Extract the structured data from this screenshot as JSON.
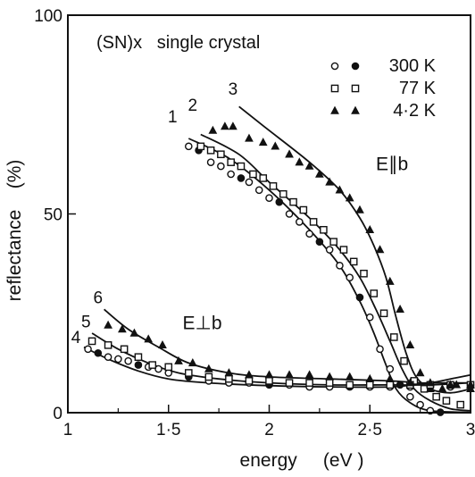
{
  "chart_data": {
    "type": "line",
    "title": "(SN)x   single crystal",
    "xlabel": "energy     (eV )",
    "ylabel": "reflectance    (%)",
    "xlim": [
      1,
      3
    ],
    "ylim": [
      0,
      100
    ],
    "xticks": [
      {
        "value": 1,
        "label": "1"
      },
      {
        "value": 1.5,
        "label": "1·5"
      },
      {
        "value": 2,
        "label": "2"
      },
      {
        "value": 2.5,
        "label": "2·5"
      },
      {
        "value": 3,
        "label": "3"
      }
    ],
    "yticks": [
      {
        "value": 0,
        "label": "0"
      },
      {
        "value": 50,
        "label": "50"
      },
      {
        "value": 100,
        "label": "100"
      }
    ],
    "grid": false,
    "legend": {
      "placement": "top-right",
      "entries": [
        {
          "markers": [
            "open-circle",
            "filled-circle"
          ],
          "label": "300 K"
        },
        {
          "markers": [
            "open-square",
            "dotted-square"
          ],
          "label": "77 K"
        },
        {
          "markers": [
            "filled-triangle",
            "filled-triangle"
          ],
          "label": "4·2 K"
        }
      ]
    },
    "annotations": [
      {
        "text": "E∥b",
        "x": 2.53,
        "y": 61
      },
      {
        "text": "E⊥b",
        "x": 1.57,
        "y": 21
      }
    ],
    "series": [
      {
        "name": "1",
        "group": "E∥b",
        "temperature": "300 K",
        "label_at": [
          1.52,
          73
        ],
        "curve": [
          [
            1.6,
            69
          ],
          [
            1.8,
            64
          ],
          [
            2.0,
            56
          ],
          [
            2.2,
            46
          ],
          [
            2.35,
            37
          ],
          [
            2.45,
            28
          ],
          [
            2.52,
            20
          ],
          [
            2.58,
            12
          ],
          [
            2.63,
            6
          ],
          [
            2.7,
            2.5
          ],
          [
            2.8,
            0.5
          ],
          [
            3.0,
            0.1
          ]
        ],
        "points": [
          [
            1.6,
            67
          ],
          [
            1.65,
            66
          ],
          [
            1.71,
            63
          ],
          [
            1.76,
            62
          ],
          [
            1.81,
            60
          ],
          [
            1.86,
            59
          ],
          [
            1.9,
            58
          ],
          [
            1.95,
            56
          ],
          [
            2.0,
            54
          ],
          [
            2.05,
            53
          ],
          [
            2.1,
            50
          ],
          [
            2.15,
            48
          ],
          [
            2.2,
            45
          ],
          [
            2.25,
            43
          ],
          [
            2.3,
            41
          ],
          [
            2.35,
            37
          ],
          [
            2.4,
            34
          ],
          [
            2.45,
            29
          ],
          [
            2.5,
            24
          ],
          [
            2.55,
            16
          ],
          [
            2.6,
            11
          ],
          [
            2.65,
            7
          ],
          [
            2.7,
            4
          ],
          [
            2.75,
            2
          ],
          [
            2.8,
            0.5
          ],
          [
            2.85,
            0.1
          ]
        ]
      },
      {
        "name": "2",
        "group": "E∥b",
        "temperature": "77 K",
        "label_at": [
          1.62,
          76
        ],
        "curve": [
          [
            1.66,
            70
          ],
          [
            1.85,
            65
          ],
          [
            2.0,
            58
          ],
          [
            2.2,
            49
          ],
          [
            2.35,
            41
          ],
          [
            2.45,
            34
          ],
          [
            2.53,
            26
          ],
          [
            2.6,
            18
          ],
          [
            2.66,
            11
          ],
          [
            2.72,
            6
          ],
          [
            2.8,
            3
          ],
          [
            2.9,
            1
          ],
          [
            3.0,
            0.5
          ]
        ],
        "points": [
          [
            1.66,
            67
          ],
          [
            1.71,
            66
          ],
          [
            1.76,
            65
          ],
          [
            1.81,
            63
          ],
          [
            1.86,
            62
          ],
          [
            1.92,
            60
          ],
          [
            1.97,
            59
          ],
          [
            2.02,
            57
          ],
          [
            2.07,
            55
          ],
          [
            2.12,
            53
          ],
          [
            2.17,
            51
          ],
          [
            2.22,
            48
          ],
          [
            2.27,
            46
          ],
          [
            2.32,
            43
          ],
          [
            2.37,
            41
          ],
          [
            2.42,
            38
          ],
          [
            2.47,
            35
          ],
          [
            2.52,
            30
          ],
          [
            2.57,
            25
          ],
          [
            2.62,
            19
          ],
          [
            2.67,
            13
          ],
          [
            2.72,
            8
          ],
          [
            2.77,
            6
          ],
          [
            2.83,
            4
          ],
          [
            2.88,
            3
          ],
          [
            2.95,
            2
          ]
        ]
      },
      {
        "name": "3",
        "group": "E∥b",
        "temperature": "4·2 K",
        "label_at": [
          1.82,
          80
        ],
        "curve": [
          [
            1.85,
            77
          ],
          [
            2.0,
            71
          ],
          [
            2.2,
            63
          ],
          [
            2.35,
            56
          ],
          [
            2.45,
            49
          ],
          [
            2.52,
            42
          ],
          [
            2.58,
            34
          ],
          [
            2.63,
            24
          ],
          [
            2.68,
            15
          ],
          [
            2.73,
            9
          ],
          [
            2.8,
            6
          ],
          [
            2.9,
            5
          ],
          [
            3.0,
            6
          ]
        ],
        "points": [
          [
            1.72,
            71
          ],
          [
            1.78,
            72
          ],
          [
            1.82,
            72
          ],
          [
            1.9,
            69
          ],
          [
            1.97,
            68
          ],
          [
            2.03,
            67
          ],
          [
            2.1,
            65
          ],
          [
            2.15,
            63
          ],
          [
            2.2,
            62
          ],
          [
            2.25,
            60
          ],
          [
            2.3,
            58
          ],
          [
            2.35,
            56
          ],
          [
            2.4,
            54
          ],
          [
            2.45,
            51
          ],
          [
            2.5,
            46
          ],
          [
            2.55,
            41
          ],
          [
            2.6,
            33
          ],
          [
            2.65,
            26
          ],
          [
            2.7,
            17
          ],
          [
            2.75,
            10
          ],
          [
            2.8,
            6
          ],
          [
            2.86,
            6
          ],
          [
            2.93,
            7
          ],
          [
            3.0,
            6
          ]
        ]
      },
      {
        "name": "4",
        "group": "E⊥b",
        "temperature": "300 K",
        "label_at": [
          1.04,
          17.5
        ],
        "curve": [
          [
            1.08,
            16.5
          ],
          [
            1.2,
            13.5
          ],
          [
            1.35,
            10.5
          ],
          [
            1.5,
            8.5
          ],
          [
            1.7,
            7.5
          ],
          [
            2.0,
            6.8
          ],
          [
            2.3,
            6.5
          ],
          [
            2.6,
            6.5
          ],
          [
            2.8,
            7.5
          ],
          [
            2.9,
            8.5
          ],
          [
            3.0,
            9.5
          ]
        ],
        "points": [
          [
            1.1,
            16
          ],
          [
            1.15,
            15
          ],
          [
            1.2,
            14
          ],
          [
            1.25,
            13.5
          ],
          [
            1.3,
            13
          ],
          [
            1.35,
            12
          ],
          [
            1.4,
            11.5
          ],
          [
            1.45,
            11
          ],
          [
            1.5,
            10
          ],
          [
            1.6,
            9
          ],
          [
            1.7,
            8
          ],
          [
            1.8,
            7.5
          ],
          [
            1.9,
            7.5
          ],
          [
            2.0,
            7
          ],
          [
            2.1,
            7
          ],
          [
            2.2,
            6.5
          ],
          [
            2.3,
            6.5
          ],
          [
            2.4,
            6.5
          ],
          [
            2.5,
            6.5
          ],
          [
            2.6,
            6.5
          ],
          [
            2.7,
            6.5
          ],
          [
            2.8,
            6.5
          ],
          [
            2.9,
            6.5
          ],
          [
            3.0,
            7
          ]
        ]
      },
      {
        "name": "5",
        "group": "E⊥b",
        "temperature": "77 K",
        "label_at": [
          1.09,
          21.5
        ],
        "curve": [
          [
            1.12,
            20
          ],
          [
            1.25,
            16
          ],
          [
            1.4,
            12.5
          ],
          [
            1.55,
            10
          ],
          [
            1.75,
            8.5
          ],
          [
            2.0,
            7.5
          ],
          [
            2.3,
            7
          ],
          [
            2.6,
            7
          ],
          [
            2.8,
            7
          ],
          [
            3.0,
            7.5
          ]
        ],
        "points": [
          [
            1.12,
            18
          ],
          [
            1.2,
            17
          ],
          [
            1.28,
            16
          ],
          [
            1.35,
            14
          ],
          [
            1.42,
            12
          ],
          [
            1.5,
            11.5
          ],
          [
            1.6,
            10
          ],
          [
            1.7,
            9
          ],
          [
            1.8,
            8.5
          ],
          [
            1.9,
            8
          ],
          [
            2.0,
            8
          ],
          [
            2.1,
            7.5
          ],
          [
            2.2,
            7.5
          ],
          [
            2.3,
            7.5
          ],
          [
            2.4,
            7
          ],
          [
            2.5,
            7
          ],
          [
            2.6,
            7
          ],
          [
            2.7,
            7
          ],
          [
            2.8,
            7
          ],
          [
            2.9,
            7
          ],
          [
            3.0,
            7
          ]
        ]
      },
      {
        "name": "6",
        "group": "E⊥b",
        "temperature": "4·2 K",
        "label_at": [
          1.15,
          27.5
        ],
        "curve": [
          [
            1.18,
            26
          ],
          [
            1.3,
            21
          ],
          [
            1.45,
            16.5
          ],
          [
            1.6,
            12.5
          ],
          [
            1.8,
            10
          ],
          [
            2.0,
            9
          ],
          [
            2.3,
            8.5
          ],
          [
            2.6,
            8
          ],
          [
            2.75,
            7.5
          ],
          [
            2.9,
            7.5
          ],
          [
            3.0,
            7.5
          ]
        ],
        "points": [
          [
            1.2,
            22
          ],
          [
            1.27,
            21
          ],
          [
            1.33,
            20
          ],
          [
            1.4,
            18.5
          ],
          [
            1.47,
            17
          ],
          [
            1.55,
            13
          ],
          [
            1.62,
            12.5
          ],
          [
            1.7,
            11
          ],
          [
            1.8,
            10
          ],
          [
            1.9,
            9.5
          ],
          [
            2.0,
            9.5
          ],
          [
            2.1,
            9.5
          ],
          [
            2.2,
            9.5
          ],
          [
            2.3,
            9
          ],
          [
            2.4,
            9
          ],
          [
            2.5,
            8.5
          ],
          [
            2.6,
            8.5
          ],
          [
            2.7,
            7.5
          ],
          [
            2.8,
            7.5
          ],
          [
            2.9,
            7
          ],
          [
            3.0,
            7
          ]
        ]
      }
    ]
  }
}
